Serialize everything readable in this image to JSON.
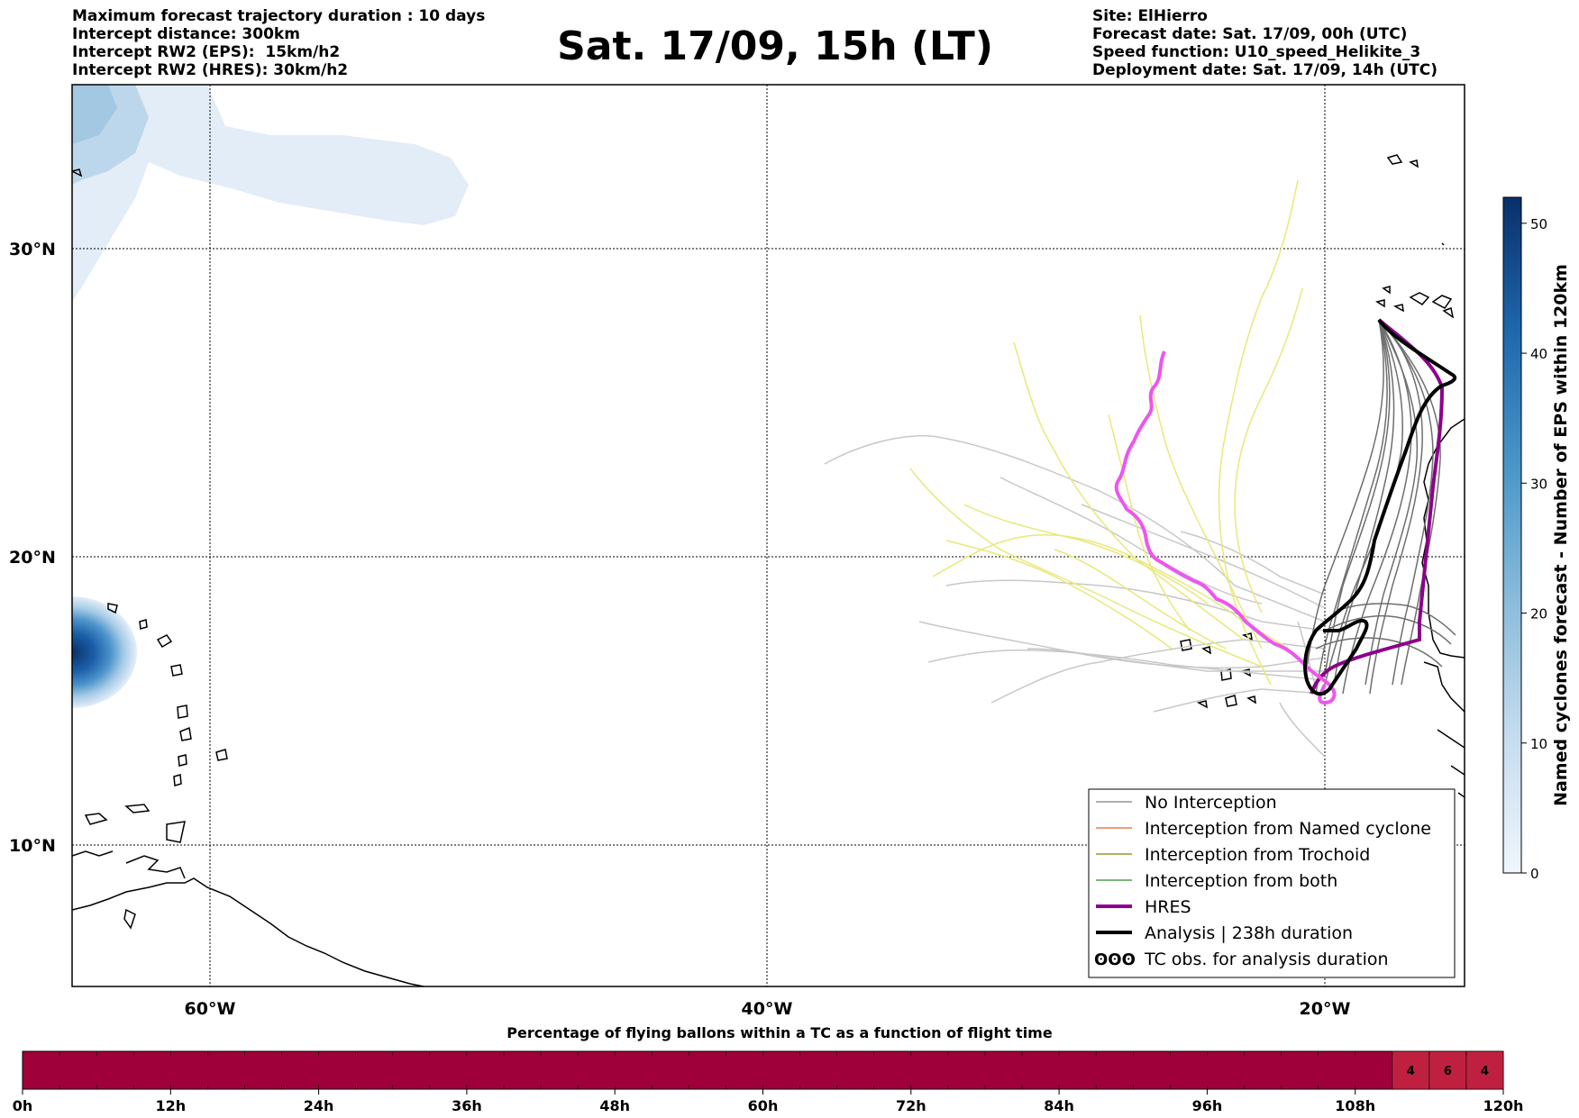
{
  "header_left": [
    "Maximum forecast trajectory duration : 10 days",
    "Intercept distance: 300km",
    "Intercept RW2 (EPS):  15km/h2",
    "Intercept RW2 (HRES): 30km/h2"
  ],
  "header_right": [
    "Site: ElHierro",
    "Forecast date: Sat. 17/09, 00h (UTC)",
    "Speed function: U10_speed_Helikite_3",
    "Deployment date: Sat. 17/09, 14h (UTC)"
  ],
  "title": "Sat. 17/09, 15h (LT)",
  "map": {
    "lat_labels": [
      "30°N",
      "20°N",
      "10°N"
    ],
    "lon_labels": [
      "60°W",
      "40°W",
      "20°W"
    ],
    "grid": "dotted"
  },
  "legend": {
    "items": [
      {
        "label": "No Interception",
        "color": "#808080",
        "style": "thin"
      },
      {
        "label": "Interception from Named cyclone",
        "color": "#e8602c",
        "style": "thin"
      },
      {
        "label": "Interception from Trochoid",
        "color": "#808000",
        "style": "thin"
      },
      {
        "label": "Interception from both",
        "color": "#2e8b2e",
        "style": "thin"
      },
      {
        "label": "HRES",
        "color": "#8b008b",
        "style": "thick"
      },
      {
        "label": "Analysis | 238h duration",
        "color": "#000000",
        "style": "thick"
      },
      {
        "label": "TC obs. for analysis duration",
        "color": "#000000",
        "style": "symbol",
        "symbol": "ʘʘʘ"
      }
    ]
  },
  "colorbar": {
    "label": "Named cyclones forecast - Number of EPS within 120km",
    "ticks": [
      "0",
      "10",
      "20",
      "30",
      "40",
      "50"
    ],
    "min": 0,
    "max": 52,
    "color_low": "#f0f6fc",
    "color_high": "#08306b"
  },
  "timeline": {
    "title": "Percentage of flying ballons within a TC as a function of flight time",
    "ticks": [
      "0h",
      "12h",
      "24h",
      "36h",
      "48h",
      "60h",
      "72h",
      "84h",
      "96h",
      "108h",
      "120h"
    ],
    "fill_color": "#a0003a",
    "cell_values": [
      {
        "hour": 114,
        "value": "4"
      },
      {
        "hour": 117,
        "value": "6"
      },
      {
        "hour": 120,
        "value": "4"
      }
    ]
  }
}
